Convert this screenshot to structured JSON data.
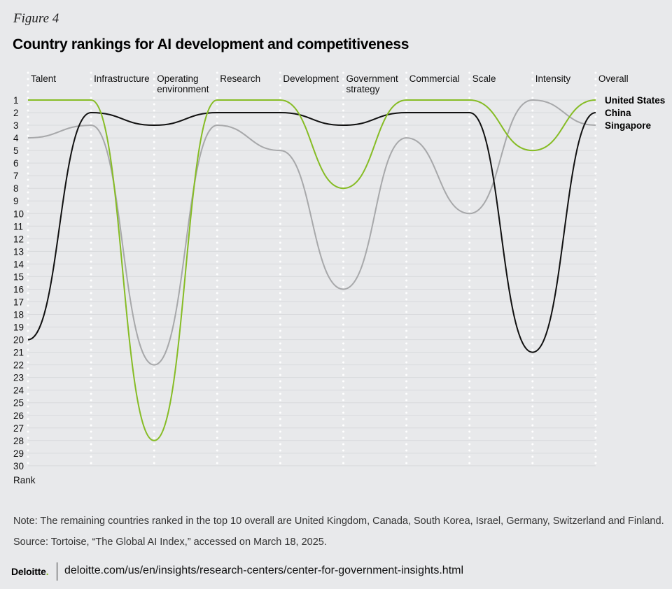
{
  "figure_label": "Figure 4",
  "chart_data": {
    "type": "line",
    "title": "Country rankings for AI development and competitiveness",
    "categories": [
      "Talent",
      "Infrastructure",
      "Operating environment",
      "Research",
      "Development",
      "Government strategy",
      "Commercial",
      "Scale",
      "Intensity",
      "Overall"
    ],
    "ylabel": "Rank",
    "ylim": [
      1,
      30
    ],
    "y_inverted": true,
    "yticks": [
      1,
      2,
      3,
      4,
      5,
      6,
      7,
      8,
      9,
      10,
      11,
      12,
      13,
      14,
      15,
      16,
      17,
      18,
      19,
      20,
      21,
      22,
      23,
      24,
      25,
      26,
      27,
      28,
      29,
      30
    ],
    "grid": true,
    "legend": "right (end labels)",
    "series": [
      {
        "name": "United States",
        "color": "#86bc25",
        "values": [
          1,
          1,
          28,
          1,
          1,
          8,
          1,
          1,
          5,
          1
        ]
      },
      {
        "name": "China",
        "color": "#111111",
        "values": [
          20,
          2,
          3,
          2,
          2,
          3,
          2,
          2,
          21,
          2
        ]
      },
      {
        "name": "Singapore",
        "color": "#a7a8aa",
        "values": [
          4,
          3,
          22,
          3,
          5,
          16,
          4,
          10,
          1,
          3
        ]
      }
    ]
  },
  "note": "Note: The remaining countries ranked in the top 10 overall are United Kingdom, Canada, South Korea, Israel, Germany, Switzerland and Finland.",
  "source": "Source: Tortoise, “The Global AI Index,” accessed on March 18, 2025.",
  "footer": {
    "logo": "Deloitte",
    "url": "deloitte.com/us/en/insights/research-centers/center-for-government-insights.html"
  }
}
